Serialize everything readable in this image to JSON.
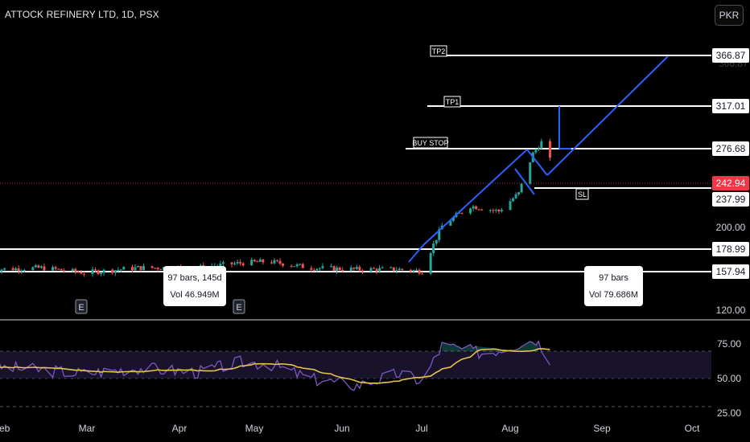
{
  "title": "ATTOCK REFINERY LTD, 1D, PSX",
  "currency": "PKR",
  "colors": {
    "up": "#26a69a",
    "down": "#ef5350",
    "drawing": "#2962ff",
    "rsi_line": "#7e57c2",
    "rsi_ma": "#e6c34a",
    "level_line": "#ffffff",
    "last_price": "#f23645"
  },
  "price_axis": {
    "ticks": [
      "366.87",
      "317.01",
      "276.68",
      "242.94",
      "237.99",
      "200.00",
      "178.99",
      "157.94",
      "120.00"
    ],
    "scale": "log"
  },
  "rsi_axis": {
    "ticks": [
      "75.00",
      "50.00",
      "25.00"
    ]
  },
  "time_axis": {
    "ticks": [
      "Feb",
      "Mar",
      "Apr",
      "May",
      "Jun",
      "Jul",
      "Aug",
      "Sep",
      "Oct"
    ]
  },
  "annotations": {
    "tp2": "TP2",
    "tp1": "TP1",
    "buy_stop": "BUY STOP",
    "sl": "SL",
    "earnings": "E",
    "range_left": {
      "line1": "97 bars, 145d",
      "line2": "Vol 46.949M"
    },
    "range_right": {
      "line1": "97 bars",
      "line2": "Vol 79.686M"
    }
  },
  "chart_data": {
    "type": "candlestick",
    "title": "ATTOCK REFINERY LTD, 1D, PSX",
    "y_unit": "PKR",
    "levels": [
      {
        "label": "TP2",
        "value": 366.87
      },
      {
        "label": "TP1",
        "value": 317.01
      },
      {
        "label": "BUY STOP",
        "value": 276.68
      },
      {
        "label": "SL",
        "value": 237.99
      },
      {
        "value": 178.99
      },
      {
        "value": 157.94
      }
    ],
    "last_price": 242.94,
    "x_ticks": [
      "Feb",
      "Mar",
      "Apr",
      "May",
      "Jun",
      "Jul",
      "Aug",
      "Sep",
      "Oct"
    ],
    "close_series": [
      {
        "date": "2024-01-29",
        "close": 166
      },
      {
        "date": "2024-02-15",
        "close": 167
      },
      {
        "date": "2024-03-01",
        "close": 164
      },
      {
        "date": "2024-03-20",
        "close": 167
      },
      {
        "date": "2024-04-10",
        "close": 167
      },
      {
        "date": "2024-04-25",
        "close": 170
      },
      {
        "date": "2024-05-05",
        "close": 171
      },
      {
        "date": "2024-05-20",
        "close": 167
      },
      {
        "date": "2024-06-05",
        "close": 166
      },
      {
        "date": "2024-06-20",
        "close": 166
      },
      {
        "date": "2024-06-28",
        "close": 165
      },
      {
        "date": "2024-07-05",
        "close": 195
      },
      {
        "date": "2024-07-15",
        "close": 210
      },
      {
        "date": "2024-07-25",
        "close": 206
      },
      {
        "date": "2024-08-01",
        "close": 220
      },
      {
        "date": "2024-08-06",
        "close": 255
      },
      {
        "date": "2024-08-09",
        "close": 266
      },
      {
        "date": "2024-08-13",
        "close": 243
      }
    ],
    "rsi": {
      "series": [
        {
          "date": "2024-01-29",
          "rsi": 61
        },
        {
          "date": "2024-02-15",
          "rsi": 58
        },
        {
          "date": "2024-03-01",
          "rsi": 55
        },
        {
          "date": "2024-03-20",
          "rsi": 60
        },
        {
          "date": "2024-04-10",
          "rsi": 56
        },
        {
          "date": "2024-04-25",
          "rsi": 65
        },
        {
          "date": "2024-05-05",
          "rsi": 64
        },
        {
          "date": "2024-05-20",
          "rsi": 50
        },
        {
          "date": "2024-06-05",
          "rsi": 44
        },
        {
          "date": "2024-06-20",
          "rsi": 55
        },
        {
          "date": "2024-06-28",
          "rsi": 48
        },
        {
          "date": "2024-07-05",
          "rsi": 80
        },
        {
          "date": "2024-07-20",
          "rsi": 73
        },
        {
          "date": "2024-08-01",
          "rsi": 82
        },
        {
          "date": "2024-08-07",
          "rsi": 86
        },
        {
          "date": "2024-08-13",
          "rsi": 65
        }
      ],
      "overbought": 70,
      "oversold": 30
    }
  }
}
